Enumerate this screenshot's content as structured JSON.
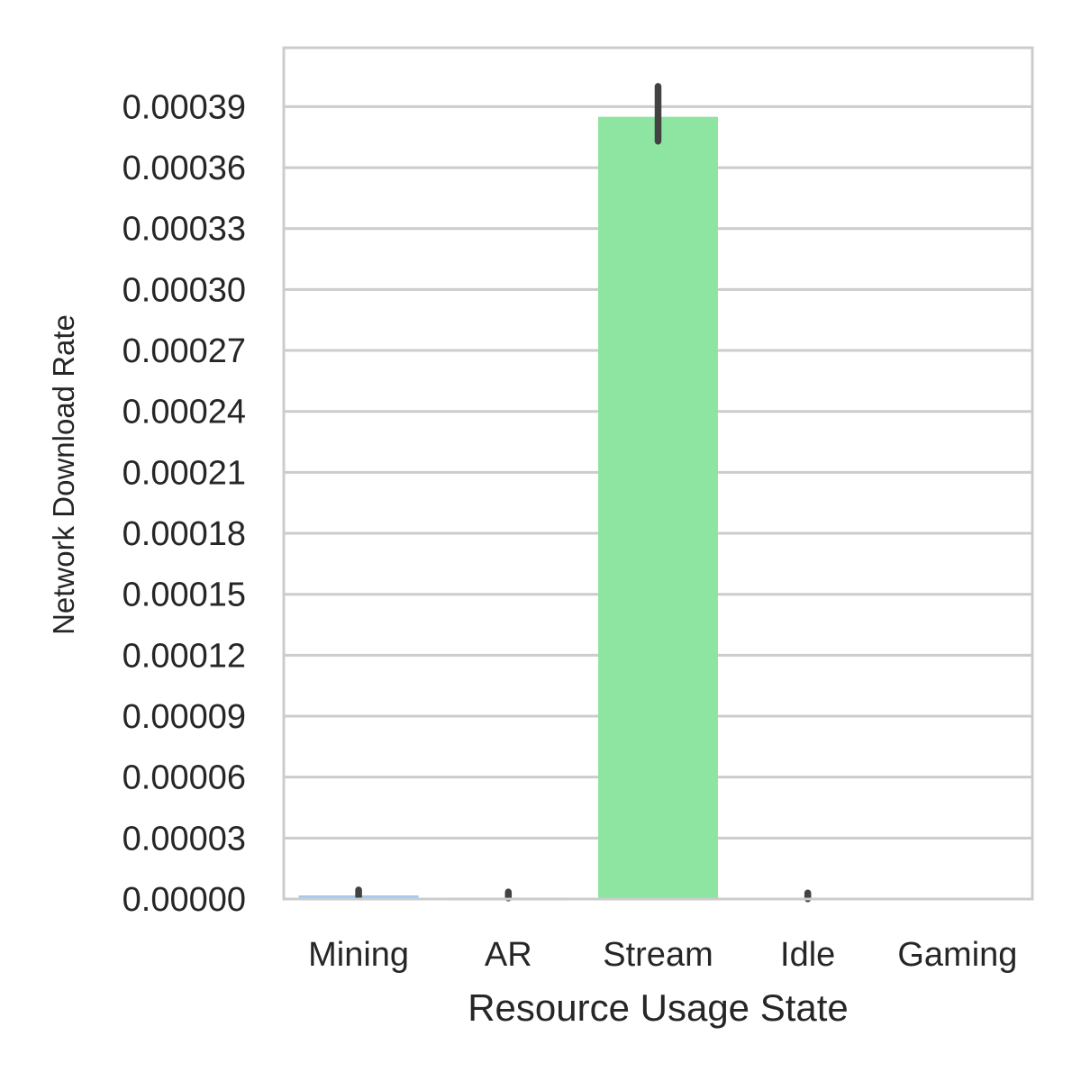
{
  "chart_data": {
    "type": "bar",
    "title": "",
    "xlabel": "Resource Usage State",
    "ylabel": "Network Download Rate",
    "categories": [
      "Mining",
      "AR",
      "Stream",
      "Idle",
      "Gaming"
    ],
    "values": [
      1.8e-06,
      7e-07,
      0.000385,
      2e-07,
      0.0
    ],
    "error_low": [
      1.2e-06,
      5e-07,
      0.000373,
      1e-07,
      0.0
    ],
    "error_high": [
      4.5e-06,
      3.5e-06,
      0.0004,
      3e-06,
      0.0
    ],
    "colors": [
      "#a1c9f4",
      "#ffb482",
      "#8de5a1",
      "#ff9f9b",
      "#d0bbff"
    ],
    "ylim": [
      0,
      0.000419
    ],
    "yticks": [
      "0.00000",
      "0.00003",
      "0.00006",
      "0.00009",
      "0.00012",
      "0.00015",
      "0.00018",
      "0.00021",
      "0.00024",
      "0.00027",
      "0.00030",
      "0.00033",
      "0.00036",
      "0.00039"
    ],
    "ytick_values": [
      0,
      3e-05,
      6e-05,
      9e-05,
      0.00012,
      0.00015,
      0.00018,
      0.00021,
      0.00024,
      0.00027,
      0.0003,
      0.00033,
      0.00036,
      0.00039
    ],
    "grid": true,
    "grid_axis": "y",
    "error_bars": true
  }
}
